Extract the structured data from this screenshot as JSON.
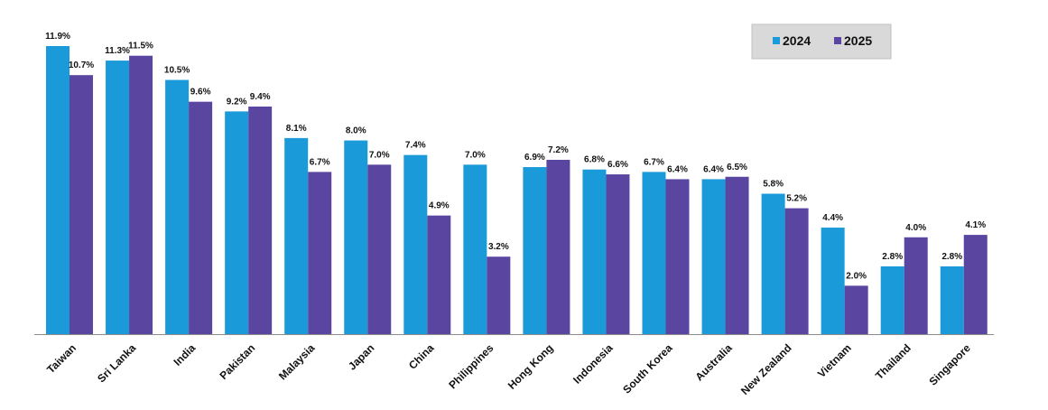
{
  "chart_data": {
    "type": "bar",
    "categories": [
      "Taiwan",
      "Sri Lanka",
      "India",
      "Pakistan",
      "Malaysia",
      "Japan",
      "China",
      "Philippines",
      "Hong Kong",
      "Indonesia",
      "South Korea",
      "Australia",
      "New Zealand",
      "Vietnam",
      "Thailand",
      "Singapore"
    ],
    "series": [
      {
        "name": "2024",
        "color": "#1b9ad9",
        "values": [
          11.9,
          11.3,
          10.5,
          9.2,
          8.1,
          8.0,
          7.4,
          7.0,
          6.9,
          6.8,
          6.7,
          6.4,
          5.8,
          4.4,
          2.8,
          2.8
        ],
        "labels": [
          "11.9%",
          "11.3%",
          "10.5%",
          "9.2%",
          "8.1%",
          "8.0%",
          "7.4%",
          "7.0%",
          "6.9%",
          "6.8%",
          "6.7%",
          "6.4%",
          "5.8%",
          "4.4%",
          "2.8%",
          "2.8%"
        ]
      },
      {
        "name": "2025",
        "color": "#5a46a0",
        "values": [
          10.7,
          11.5,
          9.6,
          9.4,
          6.7,
          7.0,
          4.9,
          3.2,
          7.2,
          6.6,
          6.4,
          6.5,
          5.2,
          2.0,
          4.0,
          4.1
        ],
        "labels": [
          "10.7%",
          "11.5%",
          "9.6%",
          "9.4%",
          "6.7%",
          "7.0%",
          "4.9%",
          "3.2%",
          "7.2%",
          "6.6%",
          "6.4%",
          "6.5%",
          "5.2%",
          "2.0%",
          "4.0%",
          "4.1%"
        ]
      }
    ],
    "ylim": [
      0,
      11.9
    ],
    "grid": false,
    "legend": {
      "position": "top-right",
      "background": "#d9d9d9",
      "border": "#bfbfbf"
    },
    "title": "",
    "xlabel": "",
    "ylabel": ""
  }
}
